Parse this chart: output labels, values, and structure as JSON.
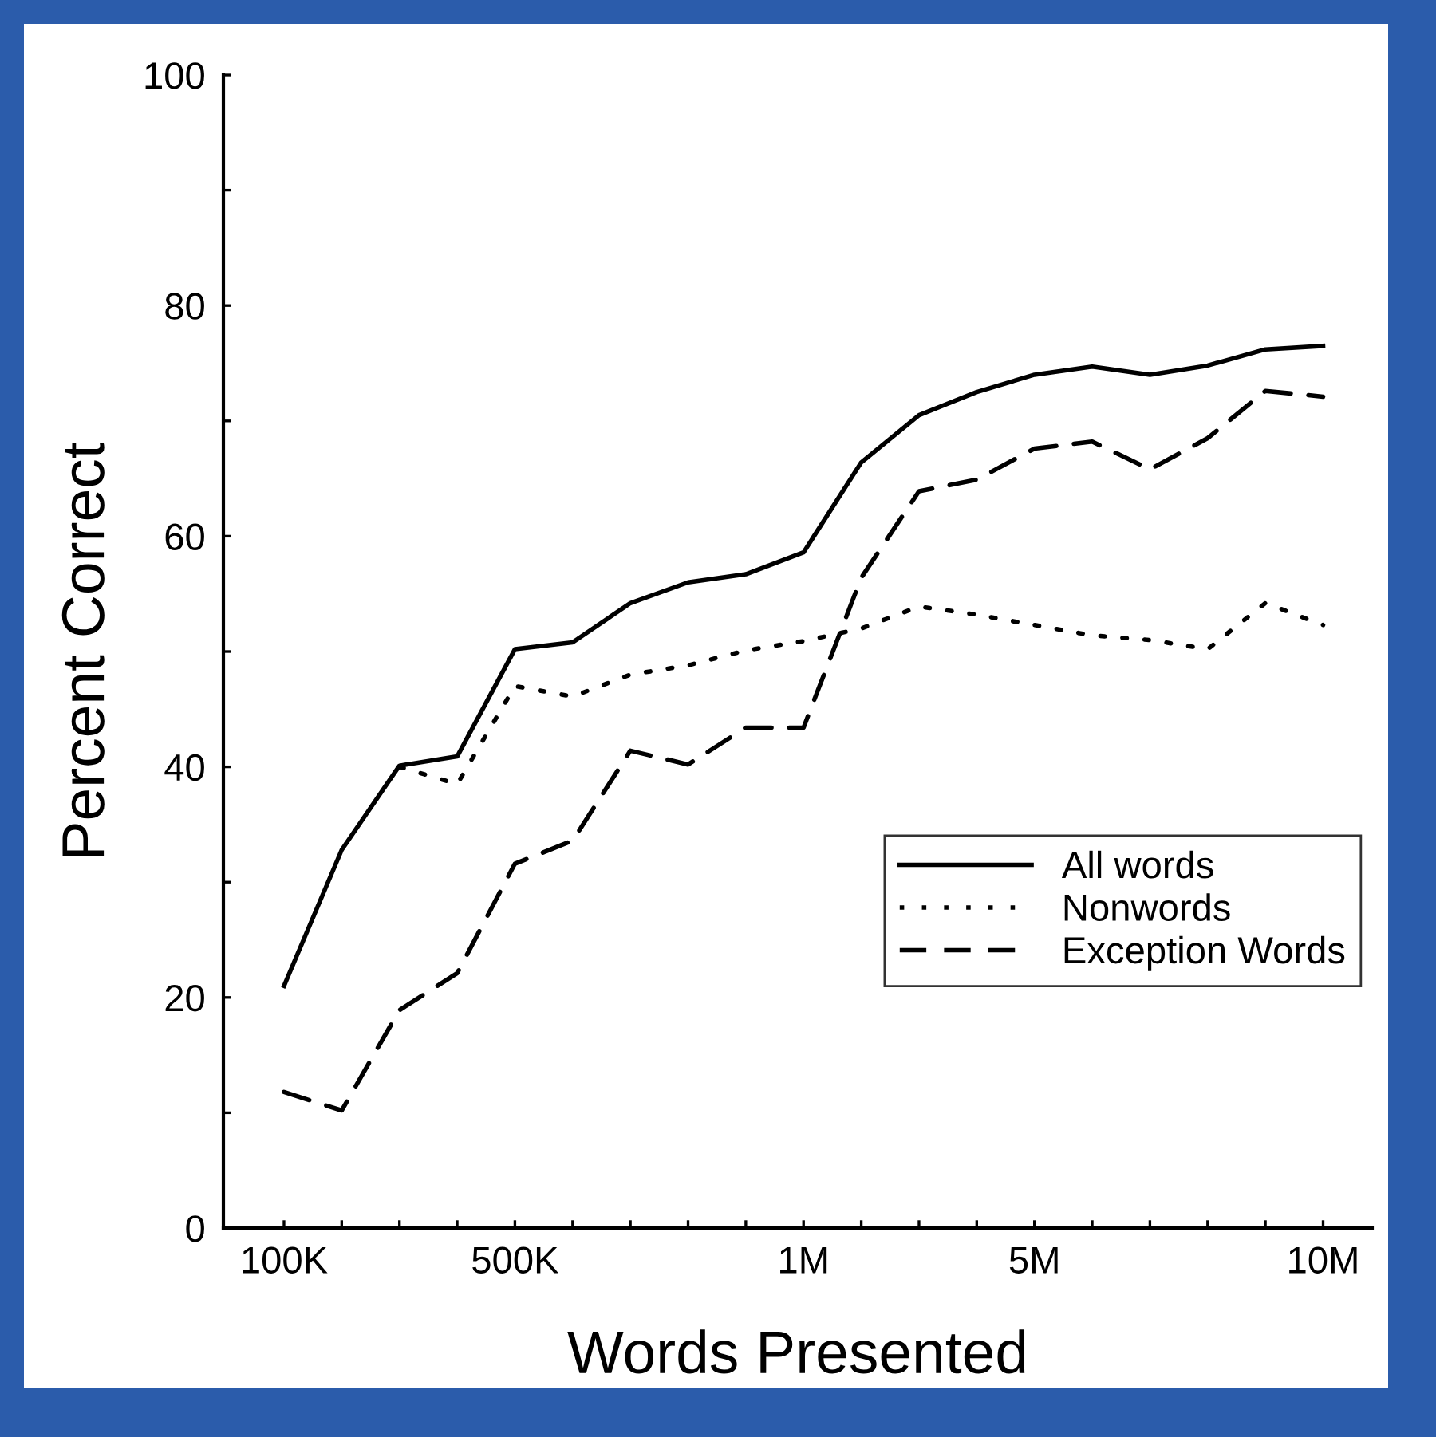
{
  "chart_data": {
    "type": "line",
    "xlabel": "Words Presented",
    "ylabel": "Percent Correct",
    "categories": [
      "100K",
      null,
      null,
      null,
      "500K",
      null,
      null,
      null,
      null,
      "1M",
      null,
      null,
      null,
      "5M",
      null,
      null,
      null,
      null,
      "10M"
    ],
    "ylim": [
      0,
      100
    ],
    "yticks": [
      0,
      {
        "value": 10,
        "label": null
      },
      20,
      {
        "value": 30,
        "label": null
      },
      40,
      {
        "value": 50,
        "label": null
      },
      60,
      {
        "value": 70,
        "label": null
      },
      80,
      {
        "value": 90,
        "label": null
      },
      100
    ],
    "grid": false,
    "legend": "lower right",
    "marker": "none",
    "series": [
      {
        "name": "All words",
        "color": "#000000",
        "line_style": "solid",
        "values": [
          21,
          32.8,
          40.1,
          40.9,
          50.2,
          50.8,
          54.2,
          56.0,
          56.7,
          58.6,
          66.4,
          70.5,
          72.5,
          74.0,
          74.7,
          74.0,
          74.8,
          76.2,
          76.5
        ]
      },
      {
        "name": "Nonwords",
        "color": "#000000",
        "line_style": "dotted",
        "values": [
          null,
          null,
          40,
          38.5,
          47.0,
          46.1,
          48.0,
          48.8,
          50.1,
          50.9,
          52.0,
          53.9,
          53.2,
          52.3,
          51.4,
          51.0,
          50.2,
          54.2,
          52.3
        ]
      },
      {
        "name": "Exception Words",
        "color": "#000000",
        "line_style": "dashed",
        "values": [
          11.8,
          10.2,
          18.9,
          22.1,
          31.6,
          33.6,
          41.4,
          40.2,
          43.4,
          43.4,
          56.4,
          63.9,
          64.9,
          67.6,
          68.2,
          65.8,
          68.5,
          72.6,
          72.1
        ]
      }
    ]
  }
}
